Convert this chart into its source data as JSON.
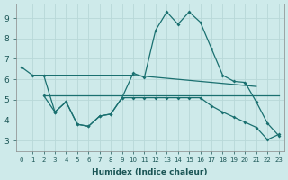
{
  "xlabel": "Humidex (Indice chaleur)",
  "background_color": "#ceeaea",
  "line_color": "#1a7070",
  "grid_color": "#b8d8d8",
  "xlim": [
    -0.5,
    23.5
  ],
  "ylim": [
    2.5,
    9.7
  ],
  "xticks": [
    0,
    1,
    2,
    3,
    4,
    5,
    6,
    7,
    8,
    9,
    10,
    11,
    12,
    13,
    14,
    15,
    16,
    17,
    18,
    19,
    20,
    21,
    22,
    23
  ],
  "yticks": [
    3,
    4,
    5,
    6,
    7,
    8,
    9
  ],
  "line1_x": [
    0,
    1,
    2,
    3,
    4,
    5,
    6,
    7,
    8,
    9,
    10,
    11,
    12,
    13,
    14,
    15,
    16,
    17,
    18,
    19,
    20,
    21,
    22,
    23
  ],
  "line1_y": [
    6.6,
    6.2,
    6.2,
    4.4,
    4.9,
    3.8,
    3.7,
    4.2,
    4.3,
    5.1,
    6.3,
    6.1,
    8.4,
    9.3,
    8.7,
    9.3,
    8.8,
    7.5,
    6.2,
    5.9,
    5.85,
    4.9,
    3.85,
    3.25
  ],
  "line2_x": [
    1,
    2,
    3,
    4,
    5,
    6,
    7,
    8,
    9,
    10,
    11,
    12,
    13,
    14,
    15,
    16,
    17,
    18,
    19,
    20,
    21
  ],
  "line2_y": [
    6.2,
    6.2,
    6.2,
    6.2,
    6.2,
    6.2,
    6.2,
    6.2,
    6.2,
    6.2,
    6.15,
    6.1,
    6.05,
    6.0,
    5.95,
    5.9,
    5.85,
    5.8,
    5.75,
    5.7,
    5.65
  ],
  "line3_x": [
    2,
    3,
    4,
    5,
    6,
    7,
    8,
    9,
    10,
    11,
    12,
    13,
    14,
    15,
    16,
    17,
    18,
    19,
    20,
    21,
    22,
    23
  ],
  "line3_y": [
    5.2,
    5.2,
    5.2,
    5.2,
    5.2,
    5.2,
    5.2,
    5.2,
    5.2,
    5.2,
    5.2,
    5.2,
    5.2,
    5.2,
    5.2,
    5.2,
    5.2,
    5.2,
    5.2,
    5.2,
    5.2,
    5.2
  ],
  "line4_x": [
    2,
    3,
    4,
    5,
    6,
    7,
    8,
    9,
    10,
    11,
    12,
    13,
    14,
    15,
    16,
    17,
    18,
    19,
    20,
    21,
    22,
    23
  ],
  "line4_y": [
    5.2,
    4.4,
    4.9,
    3.8,
    3.7,
    4.2,
    4.3,
    5.1,
    5.1,
    5.1,
    5.1,
    5.1,
    5.1,
    5.1,
    5.1,
    4.7,
    4.4,
    4.15,
    3.9,
    3.65,
    3.05,
    3.3
  ]
}
